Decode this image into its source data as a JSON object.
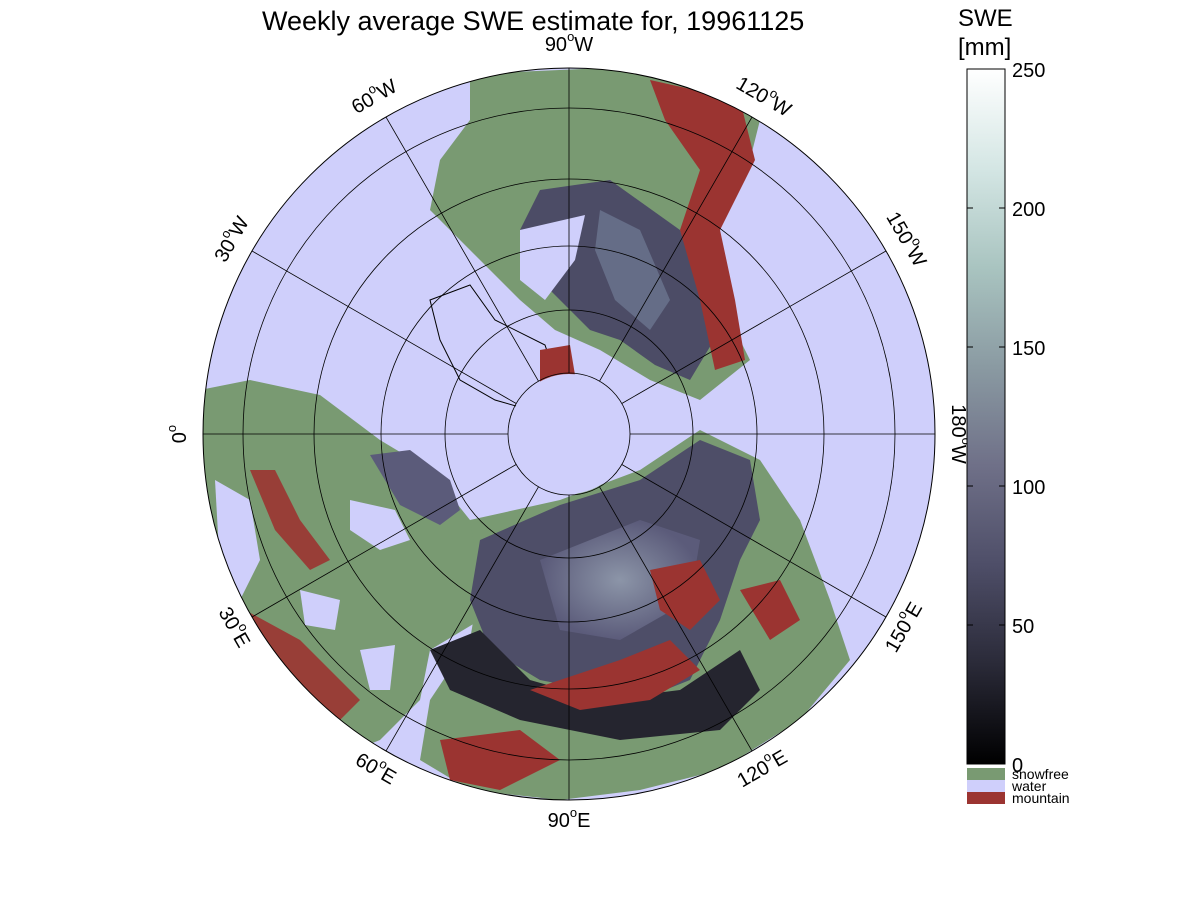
{
  "title": "Weekly average SWE estimate for, 19961125",
  "colorbar": {
    "title_line1": "SWE",
    "title_line2": "[mm]",
    "ticks": [
      "0",
      "50",
      "100",
      "150",
      "200",
      "250"
    ],
    "range": [
      0,
      250
    ],
    "gradient_colors": [
      "#000000",
      "#2a2a38",
      "#4e4e68",
      "#6f7088",
      "#8a9aa2",
      "#a9c4c0",
      "#d4e6e4",
      "#ffffff"
    ]
  },
  "legend": [
    {
      "label": "snowfree",
      "color": "#799a72"
    },
    {
      "label": "water",
      "color": "#cfcffb"
    },
    {
      "label": "mountain",
      "color": "#9b3431"
    }
  ],
  "map": {
    "projection": "north polar stereographic",
    "longitude_labels": [
      {
        "text": "90",
        "suffix": "W"
      },
      {
        "text": "120",
        "suffix": "W"
      },
      {
        "text": "150",
        "suffix": "W"
      },
      {
        "text": "180",
        "suffix": "W"
      },
      {
        "text": "150",
        "suffix": "E"
      },
      {
        "text": "120",
        "suffix": "E"
      },
      {
        "text": "90",
        "suffix": "E"
      },
      {
        "text": "60",
        "suffix": "E"
      },
      {
        "text": "30",
        "suffix": "E"
      },
      {
        "text": "0",
        "suffix": ""
      },
      {
        "text": "30",
        "suffix": "W"
      },
      {
        "text": "60",
        "suffix": "W"
      }
    ],
    "colors": {
      "ocean": "#cfcffb",
      "snowfree": "#799a72",
      "mountain": "#9b3431",
      "snow_dark": "#2c2c3a",
      "snow_mid": "#5b5b7a",
      "snow_light": "#8c9aa8"
    }
  }
}
